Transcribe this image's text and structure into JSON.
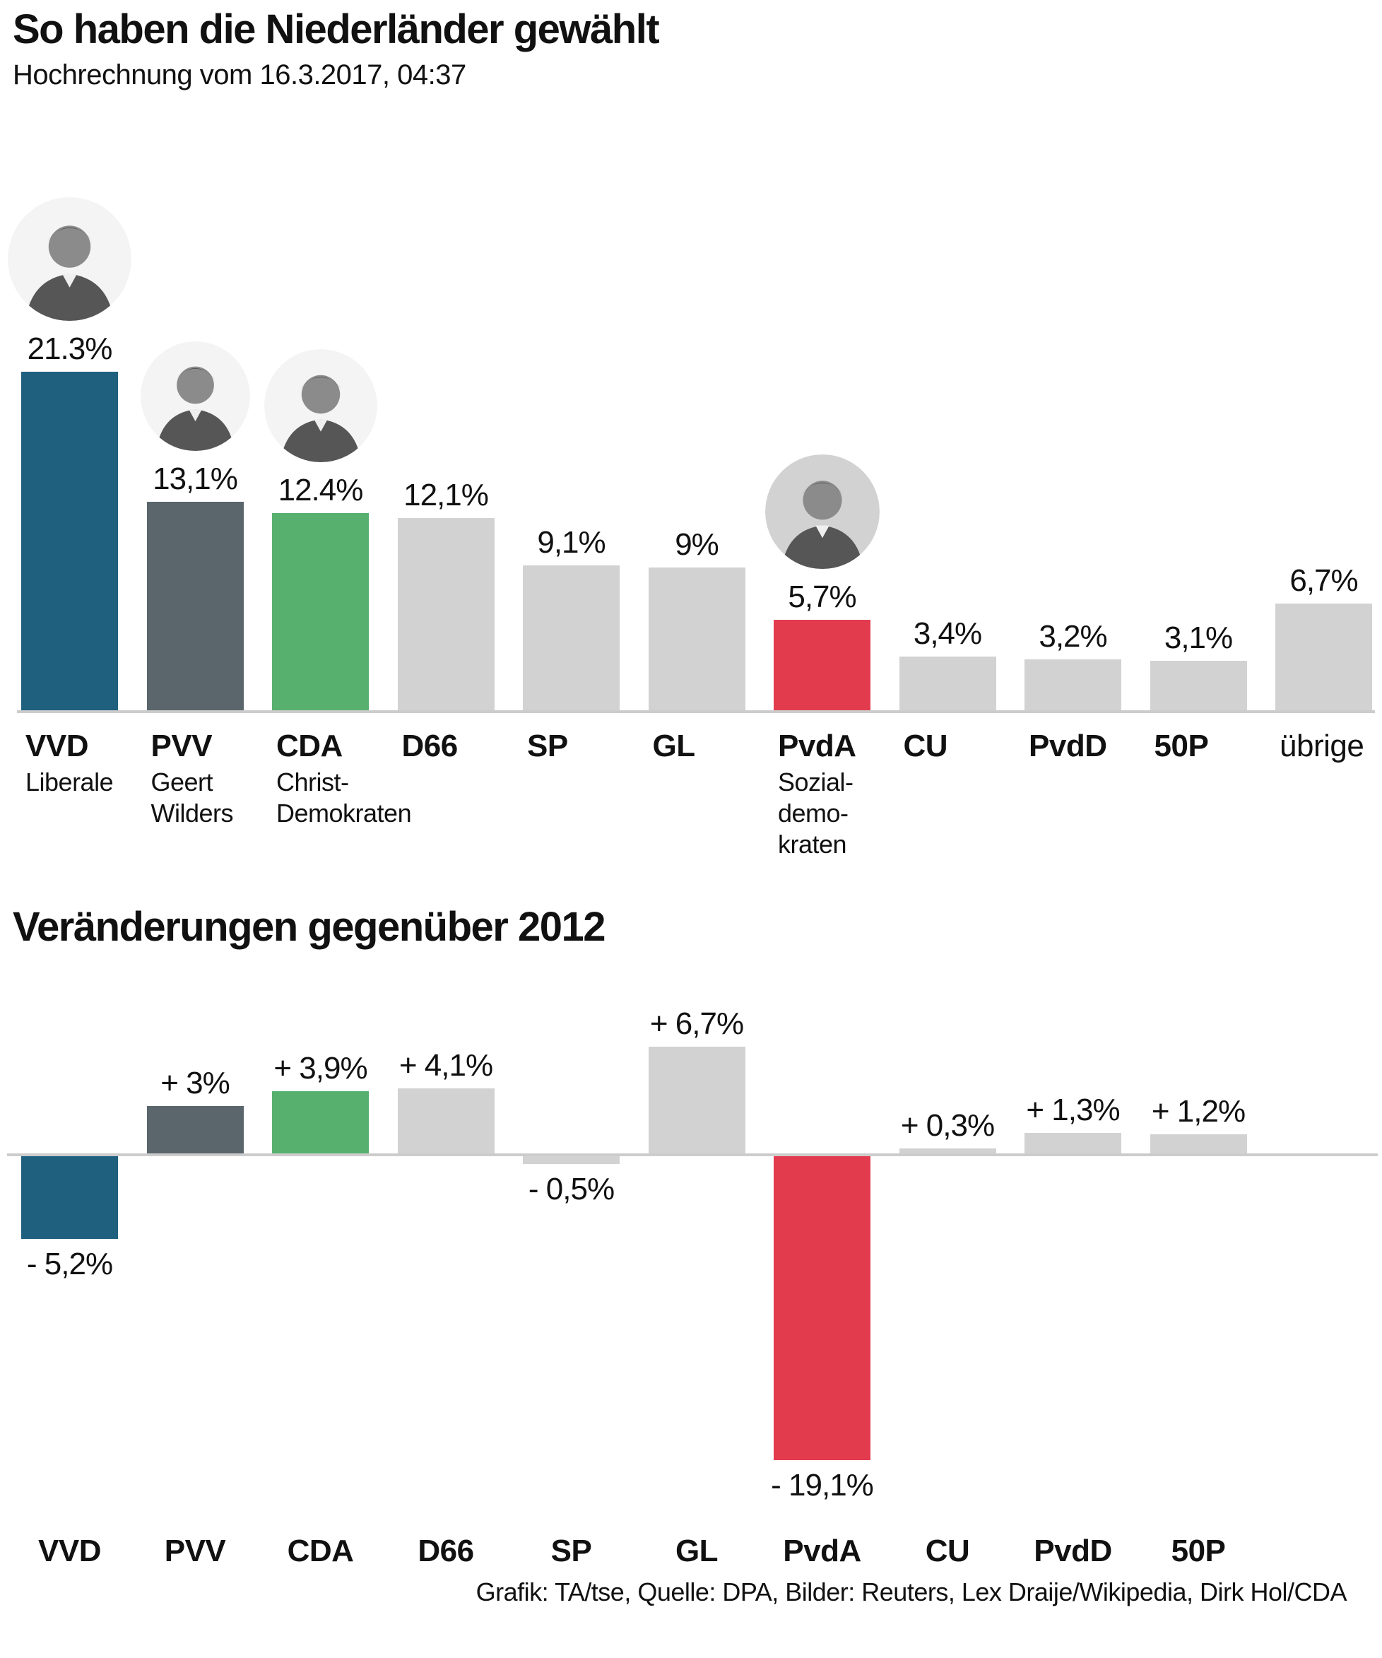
{
  "header": {
    "title": "So haben die Niederländer gewählt",
    "subtitle": "Hochrechnung vom 16.3.2017, 04:37"
  },
  "section2": {
    "title": "Veränderungen gegenüber 2012"
  },
  "footer": {
    "credit": "Grafik: TA/tse, Quelle: DPA, Bilder: Reuters, Lex Draije/Wikipedia, Dirk Hol/CDA"
  },
  "colors": {
    "vvd_blue": "#20607f",
    "pvv_gray": "#5a666c",
    "cda_green": "#57b06e",
    "pvda_red": "#e23b4e",
    "neutral_gray": "#d2d2d2",
    "baseline": "#cccccc",
    "text": "#111111",
    "portrait_bg_light": "#f4f4f4",
    "portrait_bg_gray": "#d2d2d2"
  },
  "chart_data": [
    {
      "type": "bar",
      "title": "So haben die Niederländer gewählt",
      "subtitle": "Hochrechnung vom 16.3.2017, 04:37",
      "unit": "percent",
      "ylim": [
        0,
        22
      ],
      "grid": false,
      "legend": "none",
      "categories": [
        "VVD",
        "PVV",
        "CDA",
        "D66",
        "SP",
        "GL",
        "PvdA",
        "CU",
        "PvdD",
        "50P",
        "übrige"
      ],
      "values": [
        21.3,
        13.1,
        12.4,
        12.1,
        9.1,
        9,
        5.7,
        3.4,
        3.2,
        3.1,
        6.7
      ],
      "value_labels": [
        "21.3%",
        "13,1%",
        "12.4%",
        "12,1%",
        "9,1%",
        "9%",
        "5,7%",
        "3,4%",
        "3,2%",
        "3,1%",
        "6,7%"
      ],
      "category_bold": [
        true,
        true,
        true,
        true,
        true,
        true,
        true,
        true,
        true,
        true,
        false
      ],
      "sublabels": [
        [
          "Liberale"
        ],
        [
          "Geert",
          "Wilders"
        ],
        [
          "Christ-",
          "Demokraten"
        ],
        [],
        [],
        [],
        [
          "Sozial-",
          "demo-",
          "kraten"
        ],
        [],
        [],
        [],
        []
      ],
      "bar_colors": [
        "#20607f",
        "#5a666c",
        "#57b06e",
        "#d2d2d2",
        "#d2d2d2",
        "#d2d2d2",
        "#e23b4e",
        "#d2d2d2",
        "#d2d2d2",
        "#d2d2d2",
        "#d2d2d2"
      ],
      "portraits": [
        {
          "column": "VVD",
          "bg": "#f4f4f4",
          "size": 175
        },
        {
          "column": "PVV",
          "bg": "#f4f4f4",
          "size": 155
        },
        {
          "column": "CDA",
          "bg": "#f4f4f4",
          "size": 160
        },
        {
          "column": "PvdA",
          "bg": "#d2d2d2",
          "size": 162
        }
      ]
    },
    {
      "type": "bar",
      "title": "Veränderungen gegenüber 2012",
      "unit": "percent",
      "ylim": [
        -20,
        8
      ],
      "grid": false,
      "legend": "none",
      "baseline": 0,
      "categories": [
        "VVD",
        "PVV",
        "CDA",
        "D66",
        "SP",
        "GL",
        "PvdA",
        "CU",
        "PvdD",
        "50P"
      ],
      "values": [
        -5.2,
        3,
        3.9,
        4.1,
        -0.5,
        6.7,
        -19.1,
        0.3,
        1.3,
        1.2
      ],
      "value_labels": [
        "- 5,2%",
        "+ 3%",
        "+ 3,9%",
        "+ 4,1%",
        "- 0,5%",
        "+ 6,7%",
        "- 19,1%",
        "+ 0,3%",
        "+ 1,3%",
        "+ 1,2%"
      ],
      "bar_colors": [
        "#20607f",
        "#5a666c",
        "#57b06e",
        "#d2d2d2",
        "#d2d2d2",
        "#d2d2d2",
        "#e23b4e",
        "#d2d2d2",
        "#d2d2d2",
        "#d2d2d2"
      ]
    }
  ]
}
